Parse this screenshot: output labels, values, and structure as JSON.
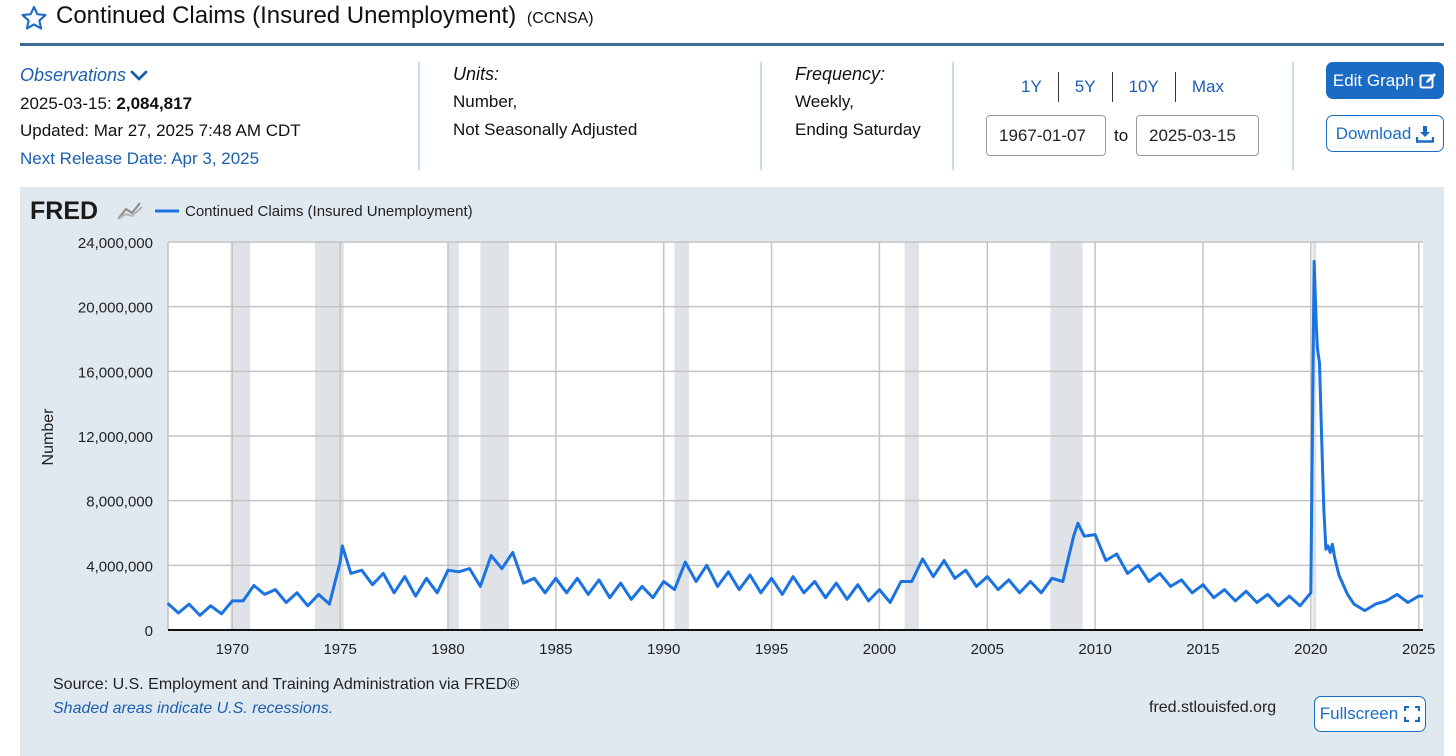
{
  "header": {
    "title": "Continued Claims (Insured Unemployment)",
    "series_id": "(CCNSA)"
  },
  "observations": {
    "toggle_label": "Observations",
    "date_label": "2025-03-15:",
    "value": "2,084,817",
    "updated": "Updated: Mar 27, 2025 7:48 AM CDT",
    "next_release": "Next Release Date: Apr 3, 2025"
  },
  "units": {
    "label": "Units:",
    "line1": "Number,",
    "line2": "Not Seasonally Adjusted"
  },
  "frequency": {
    "label": "Frequency:",
    "line1": "Weekly,",
    "line2": "Ending Saturday"
  },
  "range_buttons": [
    "1Y",
    "5Y",
    "10Y",
    "Max"
  ],
  "date_range": {
    "start": "1967-01-07",
    "to_label": "to",
    "end": "2025-03-15"
  },
  "buttons": {
    "edit_graph": "Edit Graph",
    "download": "Download",
    "fullscreen": "Fullscreen"
  },
  "footer": {
    "source": "Source: U.S. Employment and Training Administration via FRED®",
    "shaded_note": "Shaded areas indicate U.S. recessions.",
    "site": "fred.stlouisfed.org"
  },
  "colors": {
    "series": "#1a73e0",
    "recession": "#dfe3e8",
    "panel": "#e1e9f0",
    "accent": "#1a6bc4"
  },
  "icons": {
    "star": "star-icon",
    "chevron": "chevron-down-icon",
    "edit": "edit-icon",
    "download": "download-icon",
    "fullscreen": "fullscreen-icon",
    "logo": "fred-logo"
  },
  "chart_data": {
    "type": "line",
    "logo_text": "FRED",
    "legend": "Continued Claims (Insured Unemployment)",
    "ylabel": "Number",
    "xlim": [
      1967.02,
      2025.2
    ],
    "ylim": [
      0,
      24000000
    ],
    "y_ticks": [
      0,
      4000000,
      8000000,
      12000000,
      16000000,
      20000000,
      24000000
    ],
    "y_tick_labels": [
      "0",
      "4,000,000",
      "8,000,000",
      "12,000,000",
      "16,000,000",
      "20,000,000",
      "24,000,000"
    ],
    "x_ticks": [
      1970,
      1975,
      1980,
      1985,
      1990,
      1995,
      2000,
      2005,
      2010,
      2015,
      2020,
      2025
    ],
    "x_tick_labels": [
      "1970",
      "1975",
      "1980",
      "1985",
      "1990",
      "1995",
      "2000",
      "2005",
      "2010",
      "2015",
      "2020",
      "2025"
    ],
    "recessions": [
      [
        1969.92,
        1970.83
      ],
      [
        1973.83,
        1975.17
      ],
      [
        1980.0,
        1980.5
      ],
      [
        1981.5,
        1982.83
      ],
      [
        1990.5,
        1991.17
      ],
      [
        2001.17,
        2001.83
      ],
      [
        2007.92,
        2009.42
      ],
      [
        2020.08,
        2020.25
      ]
    ],
    "series": [
      {
        "name": "Continued Claims (Insured Unemployment)",
        "x": [
          1967.0,
          1967.5,
          1968.0,
          1968.5,
          1969.0,
          1969.5,
          1970.0,
          1970.5,
          1971.0,
          1971.5,
          1972.0,
          1972.5,
          1973.0,
          1973.5,
          1974.0,
          1974.5,
          1975.0,
          1975.1,
          1975.5,
          1976.0,
          1976.5,
          1977.0,
          1977.5,
          1978.0,
          1978.5,
          1979.0,
          1979.5,
          1980.0,
          1980.5,
          1981.0,
          1981.5,
          1982.0,
          1982.5,
          1983.0,
          1983.5,
          1984.0,
          1984.5,
          1985.0,
          1985.5,
          1986.0,
          1986.5,
          1987.0,
          1987.5,
          1988.0,
          1988.5,
          1989.0,
          1989.5,
          1990.0,
          1990.5,
          1991.0,
          1991.5,
          1992.0,
          1992.5,
          1993.0,
          1993.5,
          1994.0,
          1994.5,
          1995.0,
          1995.5,
          1996.0,
          1996.5,
          1997.0,
          1997.5,
          1998.0,
          1998.5,
          1999.0,
          1999.5,
          2000.0,
          2000.5,
          2001.0,
          2001.5,
          2002.0,
          2002.5,
          2003.0,
          2003.5,
          2004.0,
          2004.5,
          2005.0,
          2005.5,
          2006.0,
          2006.5,
          2007.0,
          2007.5,
          2008.0,
          2008.5,
          2009.0,
          2009.2,
          2009.5,
          2010.0,
          2010.5,
          2011.0,
          2011.5,
          2012.0,
          2012.5,
          2013.0,
          2013.5,
          2014.0,
          2014.5,
          2015.0,
          2015.5,
          2016.0,
          2016.5,
          2017.0,
          2017.5,
          2018.0,
          2018.5,
          2019.0,
          2019.5,
          2020.0,
          2020.15,
          2020.25,
          2020.3,
          2020.4,
          2020.5,
          2020.6,
          2020.7,
          2020.8,
          2020.9,
          2021.0,
          2021.1,
          2021.3,
          2021.5,
          2021.7,
          2022.0,
          2022.5,
          2023.0,
          2023.5,
          2024.0,
          2024.5,
          2025.0,
          2025.2
        ],
        "values": [
          1650000,
          1050000,
          1600000,
          900000,
          1500000,
          1000000,
          1800000,
          1800000,
          2750000,
          2200000,
          2500000,
          1700000,
          2300000,
          1500000,
          2200000,
          1600000,
          4200000,
          5200000,
          3500000,
          3700000,
          2800000,
          3500000,
          2300000,
          3300000,
          2100000,
          3200000,
          2300000,
          3700000,
          3600000,
          3800000,
          2700000,
          4600000,
          3800000,
          4800000,
          2900000,
          3200000,
          2300000,
          3200000,
          2300000,
          3200000,
          2200000,
          3100000,
          2000000,
          2900000,
          1900000,
          2700000,
          2000000,
          3000000,
          2500000,
          4200000,
          3000000,
          4000000,
          2700000,
          3600000,
          2500000,
          3400000,
          2300000,
          3200000,
          2200000,
          3300000,
          2300000,
          3000000,
          2000000,
          2900000,
          1900000,
          2800000,
          1800000,
          2500000,
          1700000,
          3000000,
          3000000,
          4400000,
          3300000,
          4300000,
          3200000,
          3700000,
          2700000,
          3300000,
          2500000,
          3100000,
          2300000,
          3000000,
          2300000,
          3200000,
          3000000,
          5800000,
          6600000,
          5800000,
          5900000,
          4300000,
          4700000,
          3500000,
          4000000,
          3000000,
          3500000,
          2700000,
          3100000,
          2300000,
          2800000,
          2000000,
          2500000,
          1800000,
          2400000,
          1700000,
          2200000,
          1500000,
          2100000,
          1500000,
          2300000,
          22800000,
          19000000,
          17500000,
          16500000,
          12000000,
          7500000,
          5000000,
          5200000,
          4800000,
          5300000,
          4500000,
          3400000,
          2800000,
          2200000,
          1600000,
          1200000,
          1600000,
          1800000,
          2200000,
          1700000,
          2100000,
          2100000
        ]
      }
    ]
  }
}
